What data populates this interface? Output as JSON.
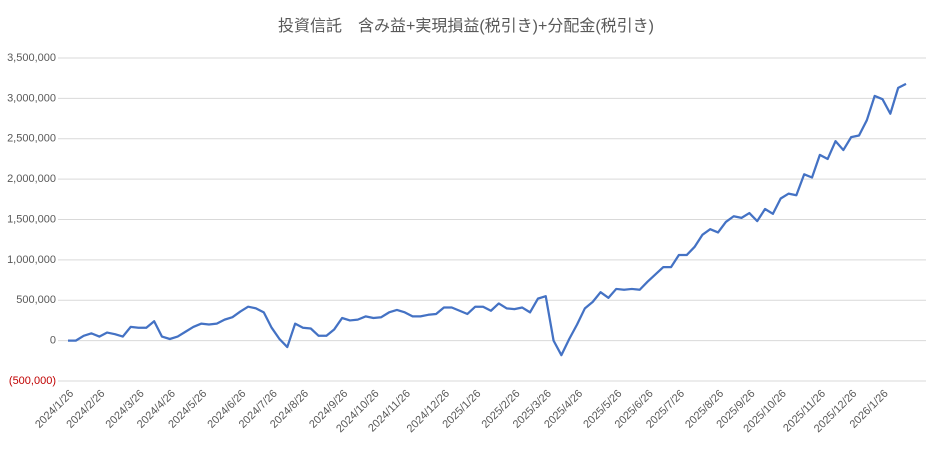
{
  "chart_data": {
    "type": "line",
    "title": "投資信託　含み益+実現損益(税引き)+分配金(税引き)",
    "categories": [
      "2024/1/26",
      null,
      null,
      null,
      "2024/2/26",
      null,
      null,
      null,
      null,
      "2024/3/26",
      null,
      null,
      null,
      "2024/4/26",
      null,
      null,
      null,
      "2024/5/26",
      null,
      null,
      null,
      null,
      "2024/6/26",
      null,
      null,
      null,
      "2024/7/26",
      null,
      null,
      null,
      "2024/8/26",
      null,
      null,
      null,
      null,
      "2024/9/26",
      null,
      null,
      null,
      "2024/10/26",
      null,
      null,
      null,
      "2024/11/26",
      null,
      null,
      null,
      null,
      "2024/12/26",
      null,
      null,
      null,
      "2025/1/26",
      null,
      null,
      null,
      null,
      "2025/2/26",
      null,
      null,
      null,
      "2025/3/26",
      null,
      null,
      null,
      "2025/4/26",
      null,
      null,
      null,
      null,
      "2025/5/26",
      null,
      null,
      null,
      "2025/6/26",
      null,
      null,
      null,
      "2025/7/26",
      null,
      null,
      null,
      null,
      "2025/8/26",
      null,
      null,
      null,
      "2025/9/26",
      null,
      null,
      null,
      "2025/10/26",
      null,
      null,
      null,
      null,
      "2025/11/26",
      null,
      null,
      null,
      "2025/12/26",
      null,
      null,
      null,
      "2026/1/26",
      null,
      null,
      null
    ],
    "series": [
      {
        "color": "#4472c4",
        "values": [
          0,
          0,
          60000,
          90000,
          50000,
          100000,
          80000,
          50000,
          170000,
          160000,
          160000,
          240000,
          50000,
          20000,
          50000,
          110000,
          170000,
          210000,
          200000,
          210000,
          260000,
          290000,
          360000,
          420000,
          400000,
          350000,
          160000,
          20000,
          -80000,
          210000,
          160000,
          150000,
          60000,
          60000,
          140000,
          280000,
          250000,
          260000,
          300000,
          280000,
          290000,
          350000,
          380000,
          350000,
          300000,
          300000,
          320000,
          330000,
          410000,
          410000,
          370000,
          330000,
          420000,
          420000,
          370000,
          460000,
          400000,
          390000,
          410000,
          350000,
          520000,
          550000,
          0,
          -180000,
          20000,
          200000,
          400000,
          480000,
          600000,
          530000,
          640000,
          630000,
          640000,
          630000,
          730000,
          820000,
          910000,
          910000,
          1060000,
          1060000,
          1160000,
          1310000,
          1380000,
          1340000,
          1470000,
          1540000,
          1520000,
          1580000,
          1480000,
          1630000,
          1570000,
          1760000,
          1820000,
          1800000,
          2060000,
          2020000,
          2300000,
          2250000,
          2470000,
          2360000,
          2520000,
          2540000,
          2730000,
          3030000,
          2990000,
          2810000,
          3130000,
          3180000
        ]
      }
    ],
    "ylim": [
      -500000,
      3500000
    ],
    "yticks": [
      {
        "value": -500000,
        "label": "(500,000)"
      },
      0,
      {
        "value": 500000,
        "label": "500,000"
      },
      {
        "value": 1000000,
        "label": "1,000,000"
      },
      {
        "value": 1500000,
        "label": "1,500,000"
      },
      {
        "value": 2000000,
        "label": "2,000,000"
      },
      {
        "value": 2500000,
        "label": "2,500,000"
      },
      {
        "value": 3000000,
        "label": "3,000,000"
      },
      {
        "value": 3500000,
        "label": "3,500,000"
      }
    ],
    "negative_label_color": "#c00000",
    "grid": true
  }
}
